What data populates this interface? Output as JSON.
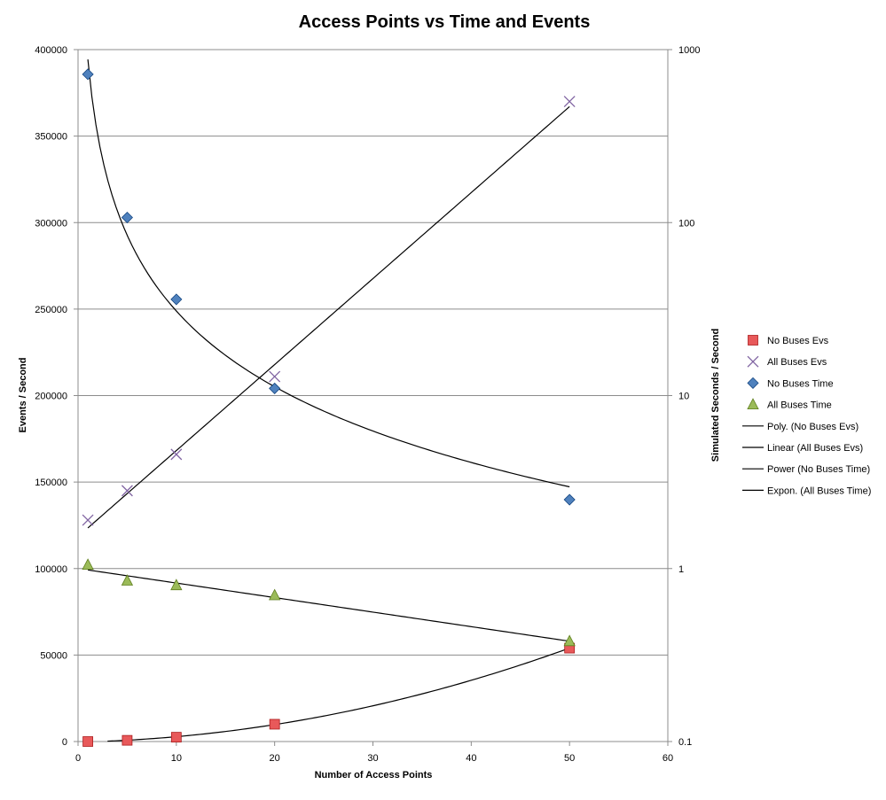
{
  "chart_data": {
    "type": "scatter",
    "title": "Access Points vs Time and Events",
    "xlabel": "Number of Access Points",
    "ylabel_left": "Events / Second",
    "ylabel_right": "Simulated Seconds / Second",
    "xlim": [
      0,
      60
    ],
    "x_ticks": [
      0,
      10,
      20,
      30,
      40,
      50,
      60
    ],
    "ylim_left": [
      0,
      400000
    ],
    "y_ticks_left": [
      0,
      50000,
      100000,
      150000,
      200000,
      250000,
      300000,
      350000,
      400000
    ],
    "ylim_right": [
      0.1,
      1000
    ],
    "y_ticks_right": [
      0.1,
      1,
      10,
      100,
      1000
    ],
    "right_axis_scale": "log",
    "gridlines": "horizontal",
    "legend_position": "right",
    "series": [
      {
        "name": "No Buses Evs",
        "axis": "left",
        "marker": "square",
        "color": "#e8595a",
        "x": [
          1,
          5,
          10,
          20,
          50
        ],
        "y": [
          0,
          700,
          2500,
          10000,
          54000
        ]
      },
      {
        "name": "All Buses Evs",
        "axis": "left",
        "marker": "x",
        "color": "#8064a2",
        "x": [
          1,
          5,
          10,
          20,
          50
        ],
        "y": [
          128000,
          145000,
          166000,
          211000,
          370000
        ]
      },
      {
        "name": "No Buses Time",
        "axis": "right",
        "marker": "diamond",
        "color": "#4f81bd",
        "x": [
          1,
          5,
          10,
          20,
          50
        ],
        "y": [
          720,
          107,
          36,
          11,
          2.5
        ]
      },
      {
        "name": "All Buses Time",
        "axis": "right",
        "marker": "triangle",
        "color": "#9bbb59",
        "x": [
          1,
          5,
          10,
          20,
          50
        ],
        "y": [
          1.05,
          0.85,
          0.8,
          0.7,
          0.38
        ]
      }
    ],
    "trendlines": [
      {
        "name": "Poly. (No Buses Evs)",
        "axis": "left",
        "type": "polynomial",
        "x_range": [
          3,
          50
        ],
        "color": "#000000"
      },
      {
        "name": "Linear (All Buses Evs)",
        "axis": "left",
        "type": "linear",
        "x_range": [
          1,
          50
        ],
        "color": "#000000"
      },
      {
        "name": "Power (No Buses Time)",
        "axis": "right",
        "type": "power",
        "x_range": [
          1,
          50
        ],
        "color": "#000000"
      },
      {
        "name": "Expon. (All Buses Time)",
        "axis": "right",
        "type": "exponential",
        "x_range": [
          1,
          50
        ],
        "color": "#000000"
      }
    ]
  }
}
